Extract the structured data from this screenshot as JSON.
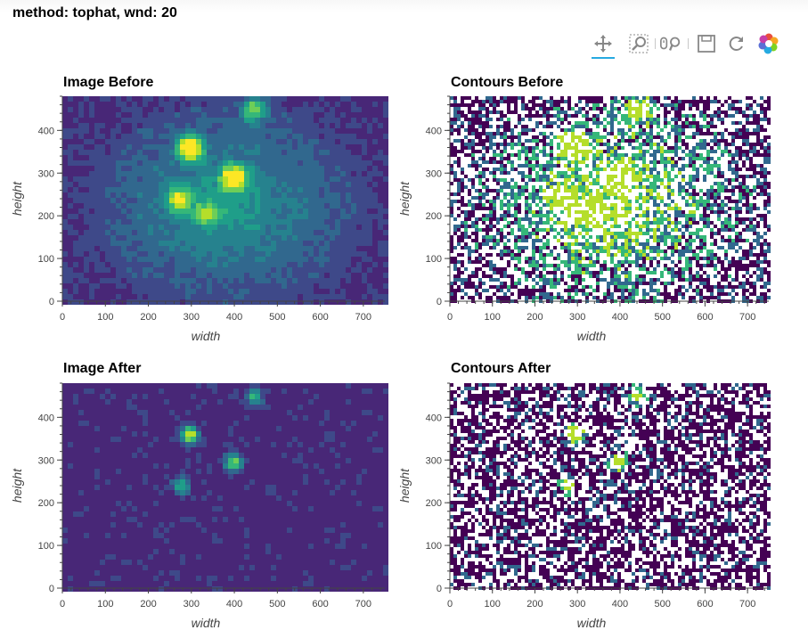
{
  "page": {
    "title": "method: tophat, wnd: 20"
  },
  "toolbar": {
    "tools": [
      {
        "name": "pan-tool",
        "icon": "pan-icon",
        "active": true
      },
      {
        "name": "box-zoom-tool",
        "icon": "box-zoom-icon",
        "active": false
      },
      {
        "name": "wheel-zoom-tool",
        "icon": "wheel-zoom-icon",
        "active": false
      },
      {
        "name": "save-tool",
        "icon": "save-icon",
        "active": false
      },
      {
        "name": "reset-tool",
        "icon": "reset-icon",
        "active": false
      },
      {
        "name": "bokeh-logo",
        "icon": "bokeh-logo-icon",
        "active": false
      }
    ],
    "accent": "#26aae1"
  },
  "colors": {
    "viridis_dark": "#440154",
    "viridis_blue": "#31688e",
    "viridis_teal": "#35b779",
    "viridis_yellow": "#d2e21b",
    "axis": "#444444"
  },
  "chart_data": [
    {
      "type": "heatmap",
      "title": "Image Before",
      "xlabel": "width",
      "ylabel": "height",
      "xlim": [
        0,
        750
      ],
      "ylim": [
        0,
        480
      ],
      "xticks": [
        0,
        100,
        200,
        300,
        400,
        500,
        600,
        700
      ],
      "yticks": [
        0,
        100,
        200,
        300,
        400
      ],
      "colormap": "viridis",
      "hotspots": [
        {
          "x": 290,
          "y": 365,
          "level": 0.95
        },
        {
          "x": 392,
          "y": 295,
          "level": 0.85
        },
        {
          "x": 440,
          "y": 455,
          "level": 0.6
        },
        {
          "x": 265,
          "y": 245,
          "level": 0.55
        },
        {
          "x": 330,
          "y": 210,
          "level": 0.45
        }
      ]
    },
    {
      "type": "heatmap",
      "title": "Contours Before",
      "xlabel": "width",
      "ylabel": "height",
      "xlim": [
        0,
        750
      ],
      "ylim": [
        0,
        480
      ],
      "xticks": [
        0,
        100,
        200,
        300,
        400,
        500,
        600,
        700
      ],
      "yticks": [
        0,
        100,
        200,
        300,
        400
      ],
      "colormap": "viridis",
      "levels": 4
    },
    {
      "type": "heatmap",
      "title": "Image After",
      "xlabel": "width",
      "ylabel": "height",
      "xlim": [
        0,
        750
      ],
      "ylim": [
        0,
        480
      ],
      "xticks": [
        0,
        100,
        200,
        300,
        400,
        500,
        600,
        700
      ],
      "yticks": [
        0,
        100,
        200,
        300,
        400
      ],
      "colormap": "viridis",
      "hotspots": [
        {
          "x": 290,
          "y": 365,
          "level": 0.9
        },
        {
          "x": 392,
          "y": 300,
          "level": 0.75
        },
        {
          "x": 440,
          "y": 455,
          "level": 0.55
        },
        {
          "x": 270,
          "y": 245,
          "level": 0.5
        }
      ]
    },
    {
      "type": "heatmap",
      "title": "Contours After",
      "xlabel": "width",
      "ylabel": "height",
      "xlim": [
        0,
        750
      ],
      "ylim": [
        0,
        480
      ],
      "xticks": [
        0,
        100,
        200,
        300,
        400,
        500,
        600,
        700
      ],
      "yticks": [
        0,
        100,
        200,
        300,
        400
      ],
      "colormap": "viridis",
      "levels": 4
    }
  ]
}
